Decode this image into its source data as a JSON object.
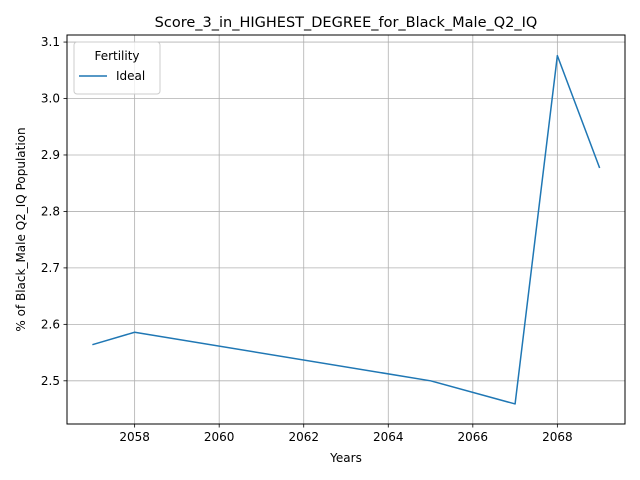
{
  "chart_data": {
    "type": "line",
    "title": "Score_3_in_HIGHEST_DEGREE_for_Black_Male_Q2_IQ",
    "xlabel": "Years",
    "ylabel": "% of Black_Male Q2_IQ Population",
    "xlim": [
      2056.4,
      2069.6
    ],
    "ylim": [
      2.4235,
      3.1125
    ],
    "x_ticks": [
      2058,
      2060,
      2062,
      2064,
      2066,
      2068
    ],
    "y_ticks": [
      2.5,
      2.6,
      2.7,
      2.8,
      2.9,
      3.0,
      3.1
    ],
    "grid": true,
    "legend": {
      "title": "Fertility",
      "placement": "upper-left"
    },
    "series": [
      {
        "name": "Ideal",
        "color": "#1f77b4",
        "x": [
          2057,
          2058,
          2065,
          2067,
          2068,
          2069
        ],
        "y": [
          2.564,
          2.586,
          2.5,
          2.459,
          3.076,
          2.877
        ]
      }
    ]
  }
}
